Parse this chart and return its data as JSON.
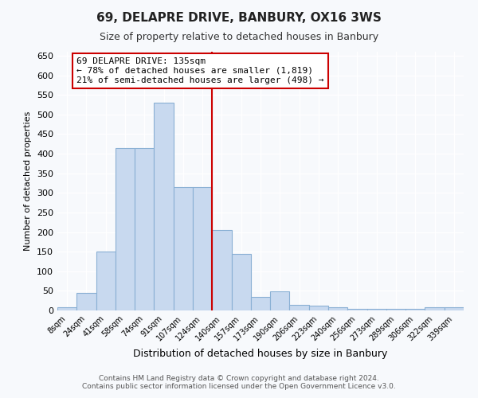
{
  "title": "69, DELAPRE DRIVE, BANBURY, OX16 3WS",
  "subtitle": "Size of property relative to detached houses in Banbury",
  "xlabel": "Distribution of detached houses by size in Banbury",
  "ylabel": "Number of detached properties",
  "bin_labels": [
    "8sqm",
    "24sqm",
    "41sqm",
    "58sqm",
    "74sqm",
    "91sqm",
    "107sqm",
    "124sqm",
    "140sqm",
    "157sqm",
    "173sqm",
    "190sqm",
    "206sqm",
    "223sqm",
    "240sqm",
    "256sqm",
    "273sqm",
    "289sqm",
    "306sqm",
    "322sqm",
    "339sqm"
  ],
  "bar_heights": [
    8,
    45,
    150,
    415,
    415,
    530,
    315,
    315,
    205,
    145,
    35,
    48,
    15,
    13,
    8,
    5,
    5,
    5,
    5,
    8,
    8
  ],
  "bar_color": "#c8d9ef",
  "bar_edge_color": "#8ab0d4",
  "property_line_color": "#cc0000",
  "property_line_bin": 8,
  "annotation_line1": "69 DELAPRE DRIVE: 135sqm",
  "annotation_line2": "← 78% of detached houses are smaller (1,819)",
  "annotation_line3": "21% of semi-detached houses are larger (498) →",
  "annotation_box_edgecolor": "#cc0000",
  "ylim": [
    0,
    660
  ],
  "yticks": [
    0,
    50,
    100,
    150,
    200,
    250,
    300,
    350,
    400,
    450,
    500,
    550,
    600,
    650
  ],
  "footer_line1": "Contains HM Land Registry data © Crown copyright and database right 2024.",
  "footer_line2": "Contains public sector information licensed under the Open Government Licence v3.0.",
  "background_color": "#f7f9fc",
  "grid_color": "#ffffff"
}
